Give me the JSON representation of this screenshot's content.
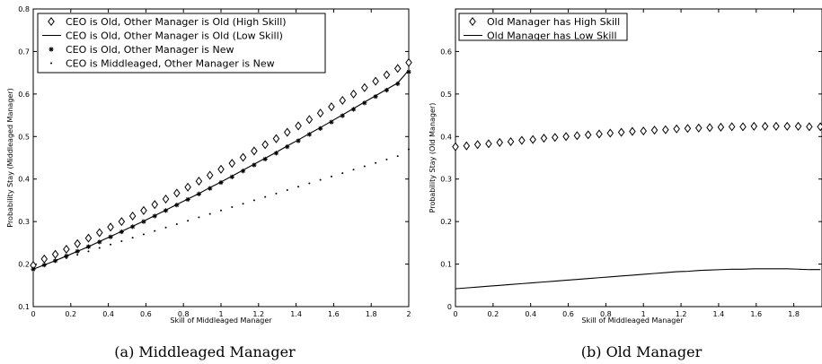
{
  "chart_data": [
    {
      "type": "scatter",
      "panel_id": "a",
      "caption": "(a) Middleaged Manager",
      "xlabel": "Skill of Middleaged Manager",
      "ylabel": "Probability Stay (Middleaged Manager)",
      "xlim": [
        0,
        2
      ],
      "ylim": [
        0.1,
        0.8
      ],
      "xticks": [
        "0",
        "0.2",
        "0.4",
        "0.6",
        "0.8",
        "1",
        "1.2",
        "1.4",
        "1.6",
        "1.8",
        "2"
      ],
      "yticks": [
        "0.1",
        "0.2",
        "0.3",
        "0.4",
        "0.5",
        "0.6",
        "0.7",
        "0.8"
      ],
      "legend_position": "top-left",
      "grid": false,
      "x": [
        0,
        0.0588,
        0.1176,
        0.1765,
        0.2353,
        0.2941,
        0.3529,
        0.4118,
        0.4706,
        0.5294,
        0.5882,
        0.6471,
        0.7059,
        0.7647,
        0.8235,
        0.8824,
        0.9412,
        1.0,
        1.0588,
        1.1176,
        1.1765,
        1.2353,
        1.2941,
        1.3529,
        1.4118,
        1.4706,
        1.5294,
        1.5882,
        1.6471,
        1.7059,
        1.7647,
        1.8235,
        1.8824,
        1.9412,
        2.0
      ],
      "series": [
        {
          "name": "CEO is Old, Other Manager is Old (High Skill)",
          "marker": "diamond",
          "values": [
            0.197,
            0.212,
            0.223,
            0.235,
            0.248,
            0.261,
            0.274,
            0.287,
            0.3,
            0.313,
            0.326,
            0.34,
            0.353,
            0.367,
            0.381,
            0.395,
            0.409,
            0.423,
            0.437,
            0.451,
            0.466,
            0.481,
            0.495,
            0.51,
            0.525,
            0.54,
            0.555,
            0.57,
            0.585,
            0.6,
            0.615,
            0.63,
            0.645,
            0.66,
            0.674
          ]
        },
        {
          "name": "CEO is Old, Other Manager is Old (Low Skill)",
          "marker": "line",
          "values": [
            0.188,
            0.198,
            0.208,
            0.219,
            0.23,
            0.241,
            0.253,
            0.265,
            0.277,
            0.289,
            0.301,
            0.314,
            0.327,
            0.34,
            0.353,
            0.366,
            0.38,
            0.393,
            0.407,
            0.421,
            0.435,
            0.449,
            0.463,
            0.478,
            0.492,
            0.507,
            0.521,
            0.536,
            0.551,
            0.566,
            0.581,
            0.596,
            0.611,
            0.626,
            0.656
          ]
        },
        {
          "name": "CEO is Old, Other Manager is New",
          "marker": "asterisk",
          "values": [
            0.188,
            0.198,
            0.208,
            0.219,
            0.23,
            0.241,
            0.252,
            0.264,
            0.276,
            0.288,
            0.3,
            0.313,
            0.326,
            0.339,
            0.352,
            0.365,
            0.378,
            0.392,
            0.405,
            0.419,
            0.433,
            0.447,
            0.461,
            0.476,
            0.49,
            0.505,
            0.519,
            0.534,
            0.549,
            0.564,
            0.579,
            0.594,
            0.609,
            0.624,
            0.652
          ]
        },
        {
          "name": "CEO is Middleaged, Other Manager is New",
          "marker": "dot",
          "values": [
            0.19,
            0.198,
            0.206,
            0.214,
            0.222,
            0.23,
            0.238,
            0.246,
            0.254,
            0.262,
            0.27,
            0.278,
            0.286,
            0.294,
            0.302,
            0.31,
            0.318,
            0.326,
            0.334,
            0.342,
            0.35,
            0.358,
            0.366,
            0.374,
            0.382,
            0.39,
            0.398,
            0.406,
            0.414,
            0.422,
            0.43,
            0.438,
            0.446,
            0.454,
            0.47
          ]
        }
      ]
    },
    {
      "type": "scatter",
      "panel_id": "b",
      "caption": "(b) Old Manager",
      "xlabel": "Skill of Middleaged Manager",
      "ylabel": "Probability Stay (Old Manager)",
      "xlim": [
        0,
        1.95
      ],
      "ylim": [
        0,
        0.7
      ],
      "xticks": [
        "0",
        "0.2",
        "0.4",
        "0.6",
        "0.8",
        "1",
        "1.2",
        "1.4",
        "1.6",
        "1.8"
      ],
      "yticks": [
        "0",
        "0.1",
        "0.2",
        "0.3",
        "0.4",
        "0.5",
        "0.6"
      ],
      "legend_position": "top-left",
      "grid": false,
      "x": [
        0,
        0.0588,
        0.1176,
        0.1765,
        0.2353,
        0.2941,
        0.3529,
        0.4118,
        0.4706,
        0.5294,
        0.5882,
        0.6471,
        0.7059,
        0.7647,
        0.8235,
        0.8824,
        0.9412,
        1.0,
        1.0588,
        1.1176,
        1.1765,
        1.2353,
        1.2941,
        1.3529,
        1.4118,
        1.4706,
        1.5294,
        1.5882,
        1.6471,
        1.7059,
        1.7647,
        1.8235,
        1.8824,
        1.9412
      ],
      "series": [
        {
          "name": "Old Manager has High Skill",
          "marker": "diamond",
          "values": [
            0.376,
            0.378,
            0.381,
            0.383,
            0.386,
            0.388,
            0.391,
            0.393,
            0.396,
            0.398,
            0.4,
            0.402,
            0.404,
            0.406,
            0.408,
            0.41,
            0.412,
            0.413,
            0.415,
            0.416,
            0.418,
            0.419,
            0.42,
            0.421,
            0.422,
            0.423,
            0.423,
            0.424,
            0.424,
            0.424,
            0.424,
            0.424,
            0.423,
            0.423
          ]
        },
        {
          "name": "Old Manager has Low Skill",
          "marker": "line",
          "values": [
            0.042,
            0.044,
            0.046,
            0.048,
            0.05,
            0.052,
            0.054,
            0.056,
            0.058,
            0.06,
            0.062,
            0.064,
            0.066,
            0.068,
            0.07,
            0.072,
            0.074,
            0.076,
            0.078,
            0.08,
            0.082,
            0.083,
            0.085,
            0.086,
            0.087,
            0.088,
            0.088,
            0.089,
            0.089,
            0.089,
            0.089,
            0.088,
            0.087,
            0.087
          ]
        }
      ]
    }
  ]
}
